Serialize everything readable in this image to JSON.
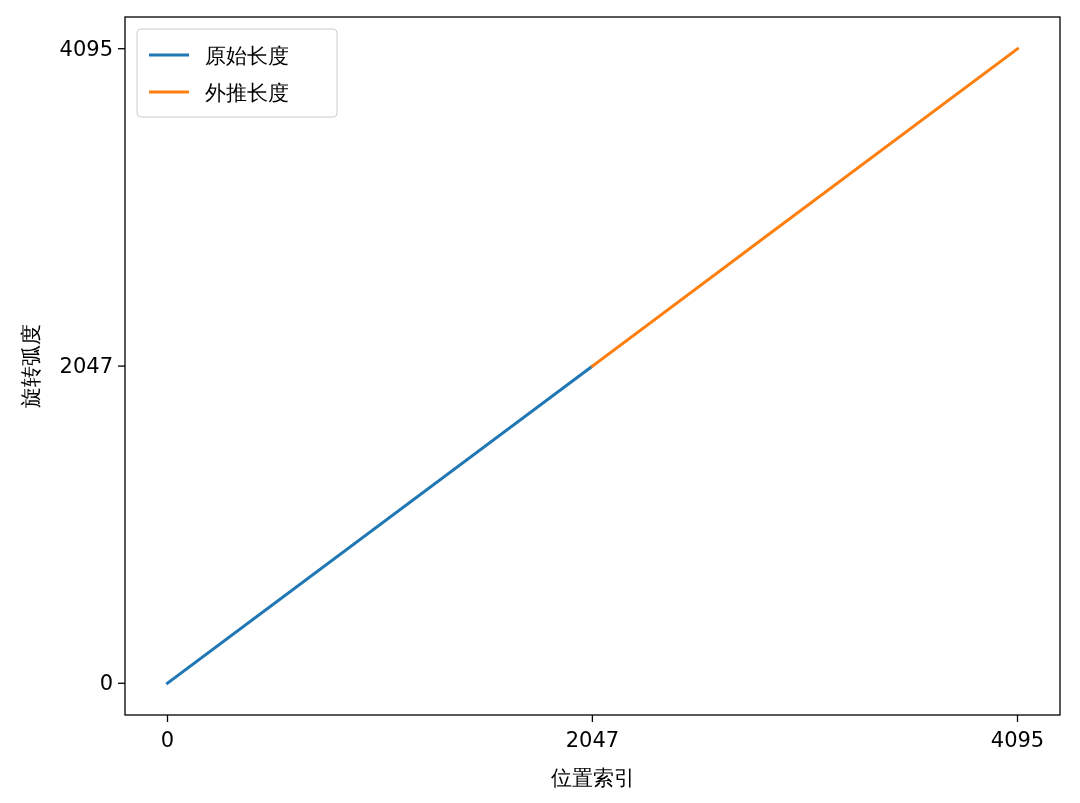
{
  "chart_data": {
    "type": "line",
    "xlabel": "位置索引",
    "ylabel": "旋转弧度",
    "xlim": [
      -204.75,
      4299.75
    ],
    "ylim": [
      -204.75,
      4299.75
    ],
    "xticks": [
      0,
      2047,
      4095
    ],
    "yticks": [
      0,
      2047,
      4095
    ],
    "legend": "top left",
    "line_style": "solid",
    "series": [
      {
        "name": "原始长度",
        "color": "#1f77b4",
        "x": [
          0,
          2047
        ],
        "values": [
          0,
          2047
        ]
      },
      {
        "name": "外推长度",
        "color": "#ff7f0e",
        "x": [
          2047,
          4095
        ],
        "values": [
          2047,
          4095
        ]
      }
    ]
  }
}
